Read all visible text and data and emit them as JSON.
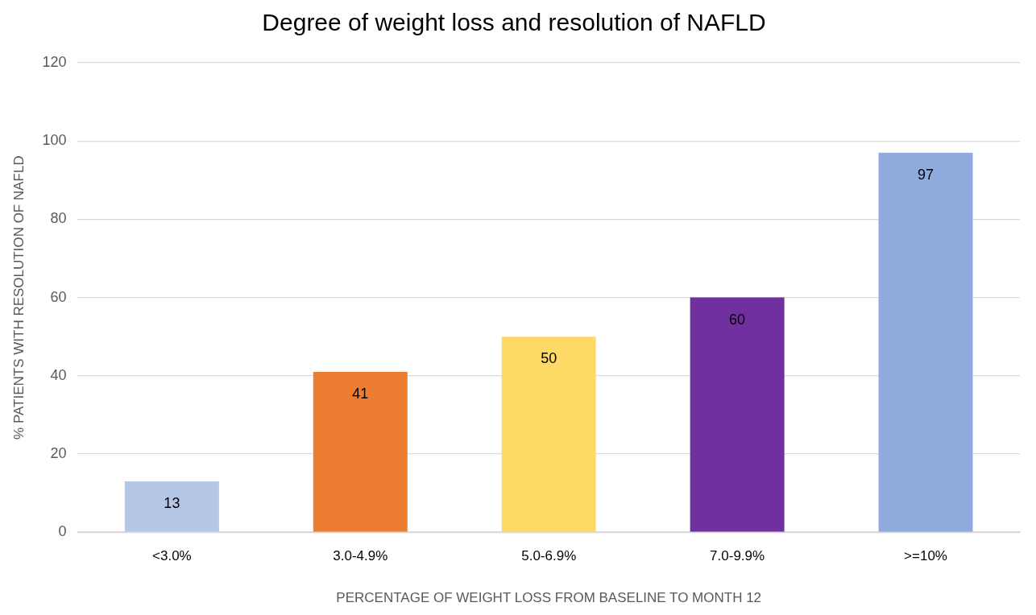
{
  "chart_data": {
    "type": "bar",
    "title": "Degree of weight loss and resolution of NAFLD",
    "xlabel": "PERCENTAGE OF WEIGHT LOSS FROM BASELINE TO MONTH 12",
    "ylabel": "% PATIENTS WITH RESOLUTION OF NAFLD",
    "categories": [
      "<3.0%",
      "3.0-4.9%",
      "5.0-6.9%",
      "7.0-9.9%",
      ">=10%"
    ],
    "values": [
      13,
      41,
      50,
      60,
      97
    ],
    "colors": [
      "#b4c7e7",
      "#ed7d31",
      "#ffd966",
      "#7030a0",
      "#8faadc"
    ],
    "ylim": [
      0,
      120
    ],
    "yticks": [
      0,
      20,
      40,
      60,
      80,
      100,
      120
    ],
    "grid": "y",
    "legend": false,
    "data_labels": true
  }
}
